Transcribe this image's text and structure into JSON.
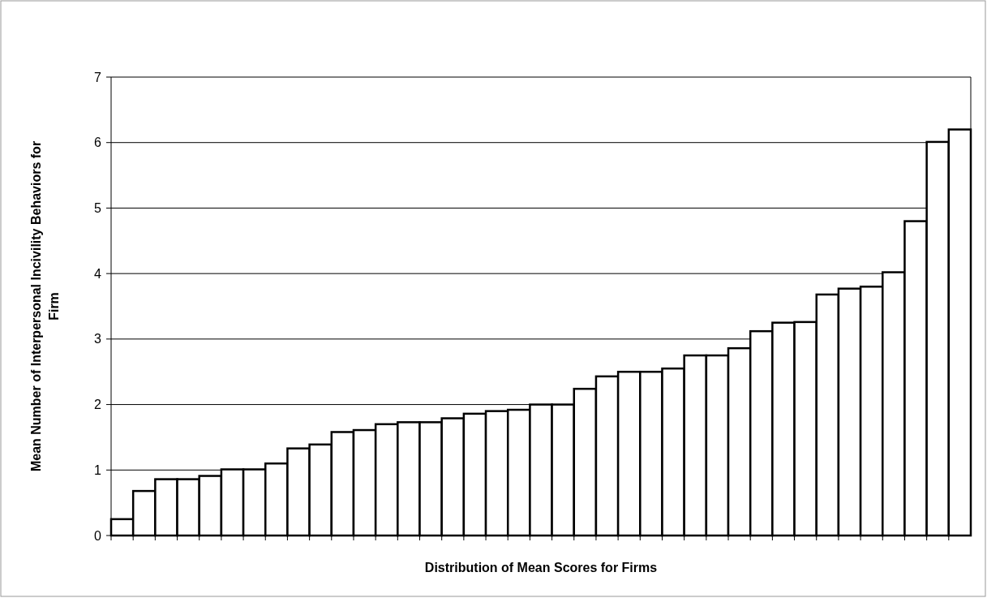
{
  "chart_data": {
    "type": "bar",
    "xlabel": "Distribution of Mean Scores for Firms",
    "ylabel": "Mean Number of Interpersonal Incivility Behaviors for Firm",
    "categories": [
      null,
      null,
      null,
      null,
      null,
      null,
      null,
      null,
      null,
      null,
      null,
      null,
      null,
      null,
      null,
      null,
      null,
      null,
      null,
      null,
      null,
      null,
      null,
      null,
      null,
      null,
      null,
      null,
      null,
      null,
      null,
      null,
      null,
      null,
      null,
      null,
      null,
      null,
      null
    ],
    "values": [
      0.25,
      0.68,
      0.86,
      0.86,
      0.91,
      1.01,
      1.01,
      1.1,
      1.33,
      1.39,
      1.58,
      1.61,
      1.7,
      1.73,
      1.73,
      1.79,
      1.86,
      1.9,
      1.92,
      2.0,
      2.0,
      2.24,
      2.43,
      2.5,
      2.5,
      2.55,
      2.75,
      2.75,
      2.86,
      3.12,
      3.25,
      3.26,
      3.68,
      3.77,
      3.8,
      4.02,
      4.8,
      6.01,
      6.2
    ],
    "color": "#ffffff",
    "ylim": [
      0,
      7
    ],
    "yticks": [
      0,
      1,
      2,
      3,
      4,
      5,
      6,
      7
    ],
    "grid": "y"
  }
}
